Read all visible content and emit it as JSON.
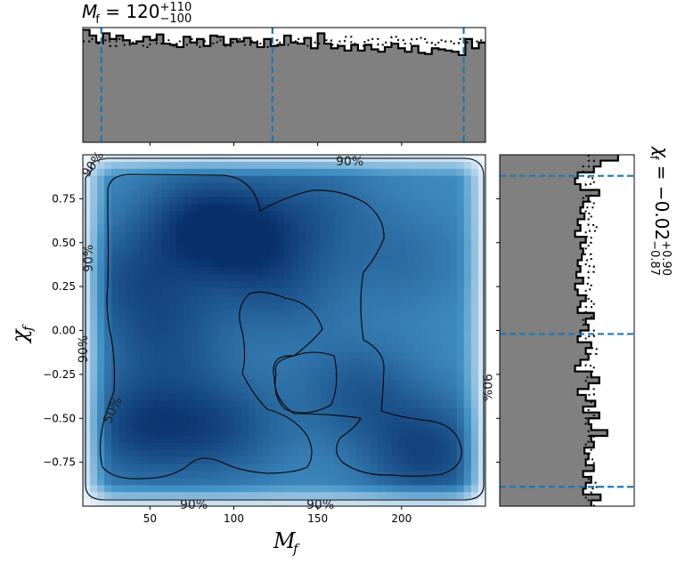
{
  "chart_data": {
    "type": "corner-plot",
    "top_title": {
      "symbol": "M",
      "subscript": "f",
      "value": "120",
      "plus": "+110",
      "minus": "−100"
    },
    "right_title": {
      "symbol": "χ",
      "subscript": "f",
      "value": "−0.02",
      "plus": "+0.90",
      "minus": "−0.87"
    },
    "xlabel": "M",
    "xlabel_sub": "f",
    "ylabel": "χ",
    "ylabel_sub": "f",
    "xlim": [
      10,
      250
    ],
    "ylim": [
      -1,
      1
    ],
    "x_ticks": [
      50,
      100,
      150,
      200
    ],
    "y_ticks": [
      -0.75,
      -0.5,
      -0.25,
      0.0,
      0.25,
      0.5,
      0.75
    ],
    "y_tick_labels": [
      "−0.75",
      "−0.50",
      "−0.25",
      "0.00",
      "0.25",
      "0.50",
      "0.75"
    ],
    "contour_labels": [
      "50%",
      "90%"
    ],
    "mf_quantile_lines": [
      21,
      123,
      237
    ],
    "chi_quantile_lines": [
      -0.89,
      -0.02,
      0.88
    ],
    "mf_hist_bins": 60,
    "mf_hist_solid": [
      0.98,
      0.93,
      0.87,
      0.95,
      0.9,
      0.93,
      0.89,
      0.86,
      0.88,
      0.92,
      0.89,
      0.94,
      0.86,
      0.85,
      0.83,
      0.92,
      0.87,
      0.9,
      0.84,
      0.93,
      0.92,
      0.85,
      0.9,
      0.88,
      0.91,
      0.87,
      0.83,
      0.9,
      0.84,
      0.85,
      0.93,
      0.87,
      0.86,
      0.91,
      0.82,
      0.95,
      0.86,
      0.82,
      0.84,
      0.8,
      0.85,
      0.8,
      0.85,
      0.81,
      0.79,
      0.83,
      0.86,
      0.82,
      0.79,
      0.84,
      0.78,
      0.77,
      0.82,
      0.81,
      0.8,
      0.79,
      0.76,
      0.9,
      0.82,
      0.87
    ],
    "mf_hist_dotted": [
      0.88,
      0.9,
      0.86,
      0.89,
      0.84,
      0.9,
      0.85,
      0.87,
      0.88,
      0.83,
      0.9,
      0.86,
      0.89,
      0.84,
      0.88,
      0.85,
      0.9,
      0.83,
      0.88,
      0.86,
      0.89,
      0.84,
      0.87,
      0.9,
      0.85,
      0.88,
      0.86,
      0.83,
      0.89,
      0.87,
      0.85,
      0.88,
      0.9,
      0.84,
      0.87,
      0.86,
      0.89,
      0.85,
      0.88,
      0.92,
      0.86,
      0.84,
      0.89,
      0.9,
      0.85,
      0.87,
      0.92,
      0.89,
      0.86,
      0.9,
      0.91,
      0.87,
      0.85,
      0.89,
      0.88,
      0.86,
      0.9,
      0.87,
      0.88,
      0.89
    ],
    "chi_hist_bins": 60,
    "chi_hist_solid": [
      0.88,
      0.75,
      0.7,
      0.58,
      0.56,
      0.6,
      0.74,
      0.66,
      0.62,
      0.6,
      0.63,
      0.58,
      0.6,
      0.56,
      0.64,
      0.6,
      0.62,
      0.61,
      0.58,
      0.6,
      0.57,
      0.62,
      0.56,
      0.58,
      0.64,
      0.6,
      0.58,
      0.7,
      0.64,
      0.66,
      0.6,
      0.58,
      0.68,
      0.64,
      0.66,
      0.6,
      0.56,
      0.68,
      0.74,
      0.66,
      0.58,
      0.64,
      0.71,
      0.62,
      0.74,
      0.66,
      0.68,
      0.8,
      0.68,
      0.7,
      0.63,
      0.66,
      0.64,
      0.7,
      0.62,
      0.68,
      0.64,
      0.62,
      0.75,
      0.68
    ],
    "chi_hist_dotted": [
      0.66,
      0.7,
      0.62,
      0.66,
      0.7,
      0.64,
      0.68,
      0.62,
      0.7,
      0.64,
      0.68,
      0.66,
      0.72,
      0.64,
      0.68,
      0.66,
      0.62,
      0.68,
      0.64,
      0.7,
      0.66,
      0.62,
      0.68,
      0.64,
      0.66,
      0.7,
      0.64,
      0.68,
      0.62,
      0.66,
      0.7,
      0.64,
      0.68,
      0.72,
      0.66,
      0.64,
      0.7,
      0.68,
      0.64,
      0.66,
      0.7,
      0.64,
      0.68,
      0.66,
      0.7,
      0.64,
      0.68,
      0.66,
      0.7,
      0.64,
      0.68,
      0.66,
      0.7,
      0.64,
      0.68,
      0.66,
      0.72,
      0.68,
      0.64,
      0.7
    ],
    "density_peaks": [
      {
        "x": 80,
        "y": 0.62,
        "a": 0.5
      },
      {
        "x": 40,
        "y": 0.3,
        "a": 0.35
      },
      {
        "x": 45,
        "y": -0.55,
        "a": 0.5
      },
      {
        "x": 95,
        "y": -0.55,
        "a": 0.4
      },
      {
        "x": 215,
        "y": -0.7,
        "a": 0.5
      },
      {
        "x": 175,
        "y": -0.35,
        "a": 0.35
      },
      {
        "x": 200,
        "y": 0.4,
        "a": 0.2
      },
      {
        "x": 130,
        "y": 0.2,
        "a": 0.25
      },
      {
        "x": 60,
        "y": -0.05,
        "a": 0.35
      },
      {
        "x": 150,
        "y": 0.7,
        "a": 0.25
      },
      {
        "x": 110,
        "y": 0.5,
        "a": 0.4
      }
    ],
    "colors": {
      "hist_fill": "#808080",
      "quantile_line": "#1f77b4",
      "contour": "#000000",
      "density_light": "#f4f9ff",
      "density_dark": "#08306b"
    }
  }
}
